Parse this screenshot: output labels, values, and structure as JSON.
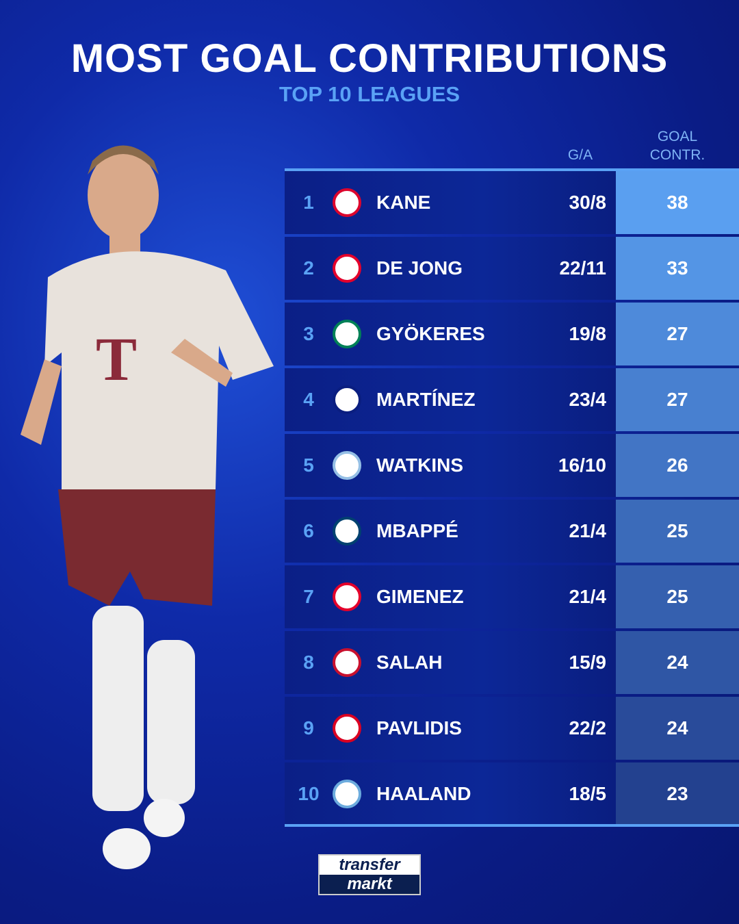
{
  "header": {
    "title": "MOST GOAL CONTRIBUTIONS",
    "subtitle": "TOP 10 LEAGUES"
  },
  "columns": {
    "ga": "G/A",
    "goal_contr_line1": "GOAL",
    "goal_contr_line2": "CONTR."
  },
  "colors": {
    "accent": "#5aa2f5",
    "row_bg": "#0c2797",
    "contr_top": "#5a9ff0",
    "contr_bottom": "#23418f"
  },
  "rows": [
    {
      "rank": "1",
      "club_icon": "bayern-munich-crest",
      "crest_color": "#dc052d",
      "name": "KANE",
      "ga": "30/8",
      "contr": "38"
    },
    {
      "rank": "2",
      "club_icon": "psv-crest",
      "crest_color": "#e4002b",
      "name": "DE JONG",
      "ga": "22/11",
      "contr": "33"
    },
    {
      "rank": "3",
      "club_icon": "sporting-cp-crest",
      "crest_color": "#008057",
      "name": "GYÖKERES",
      "ga": "19/8",
      "contr": "27"
    },
    {
      "rank": "4",
      "club_icon": "inter-milan-crest",
      "crest_color": "#0a1e80",
      "name": "MARTÍNEZ",
      "ga": "23/4",
      "contr": "27"
    },
    {
      "rank": "5",
      "club_icon": "aston-villa-crest",
      "crest_color": "#95bfe5",
      "name": "WATKINS",
      "ga": "16/10",
      "contr": "26"
    },
    {
      "rank": "6",
      "club_icon": "psg-crest",
      "crest_color": "#004170",
      "name": "MBAPPÉ",
      "ga": "21/4",
      "contr": "25"
    },
    {
      "rank": "7",
      "club_icon": "feyenoord-crest",
      "crest_color": "#e4002b",
      "name": "GIMENEZ",
      "ga": "21/4",
      "contr": "25"
    },
    {
      "rank": "8",
      "club_icon": "liverpool-crest",
      "crest_color": "#c8102e",
      "name": "SALAH",
      "ga": "15/9",
      "contr": "24"
    },
    {
      "rank": "9",
      "club_icon": "az-alkmaar-crest",
      "crest_color": "#db0021",
      "name": "PAVLIDIS",
      "ga": "22/2",
      "contr": "24"
    },
    {
      "rank": "10",
      "club_icon": "manchester-city-crest",
      "crest_color": "#6cabdd",
      "name": "HAALAND",
      "ga": "18/5",
      "contr": "23"
    }
  ],
  "logo": {
    "line1": "transfer",
    "line2": "markt"
  }
}
